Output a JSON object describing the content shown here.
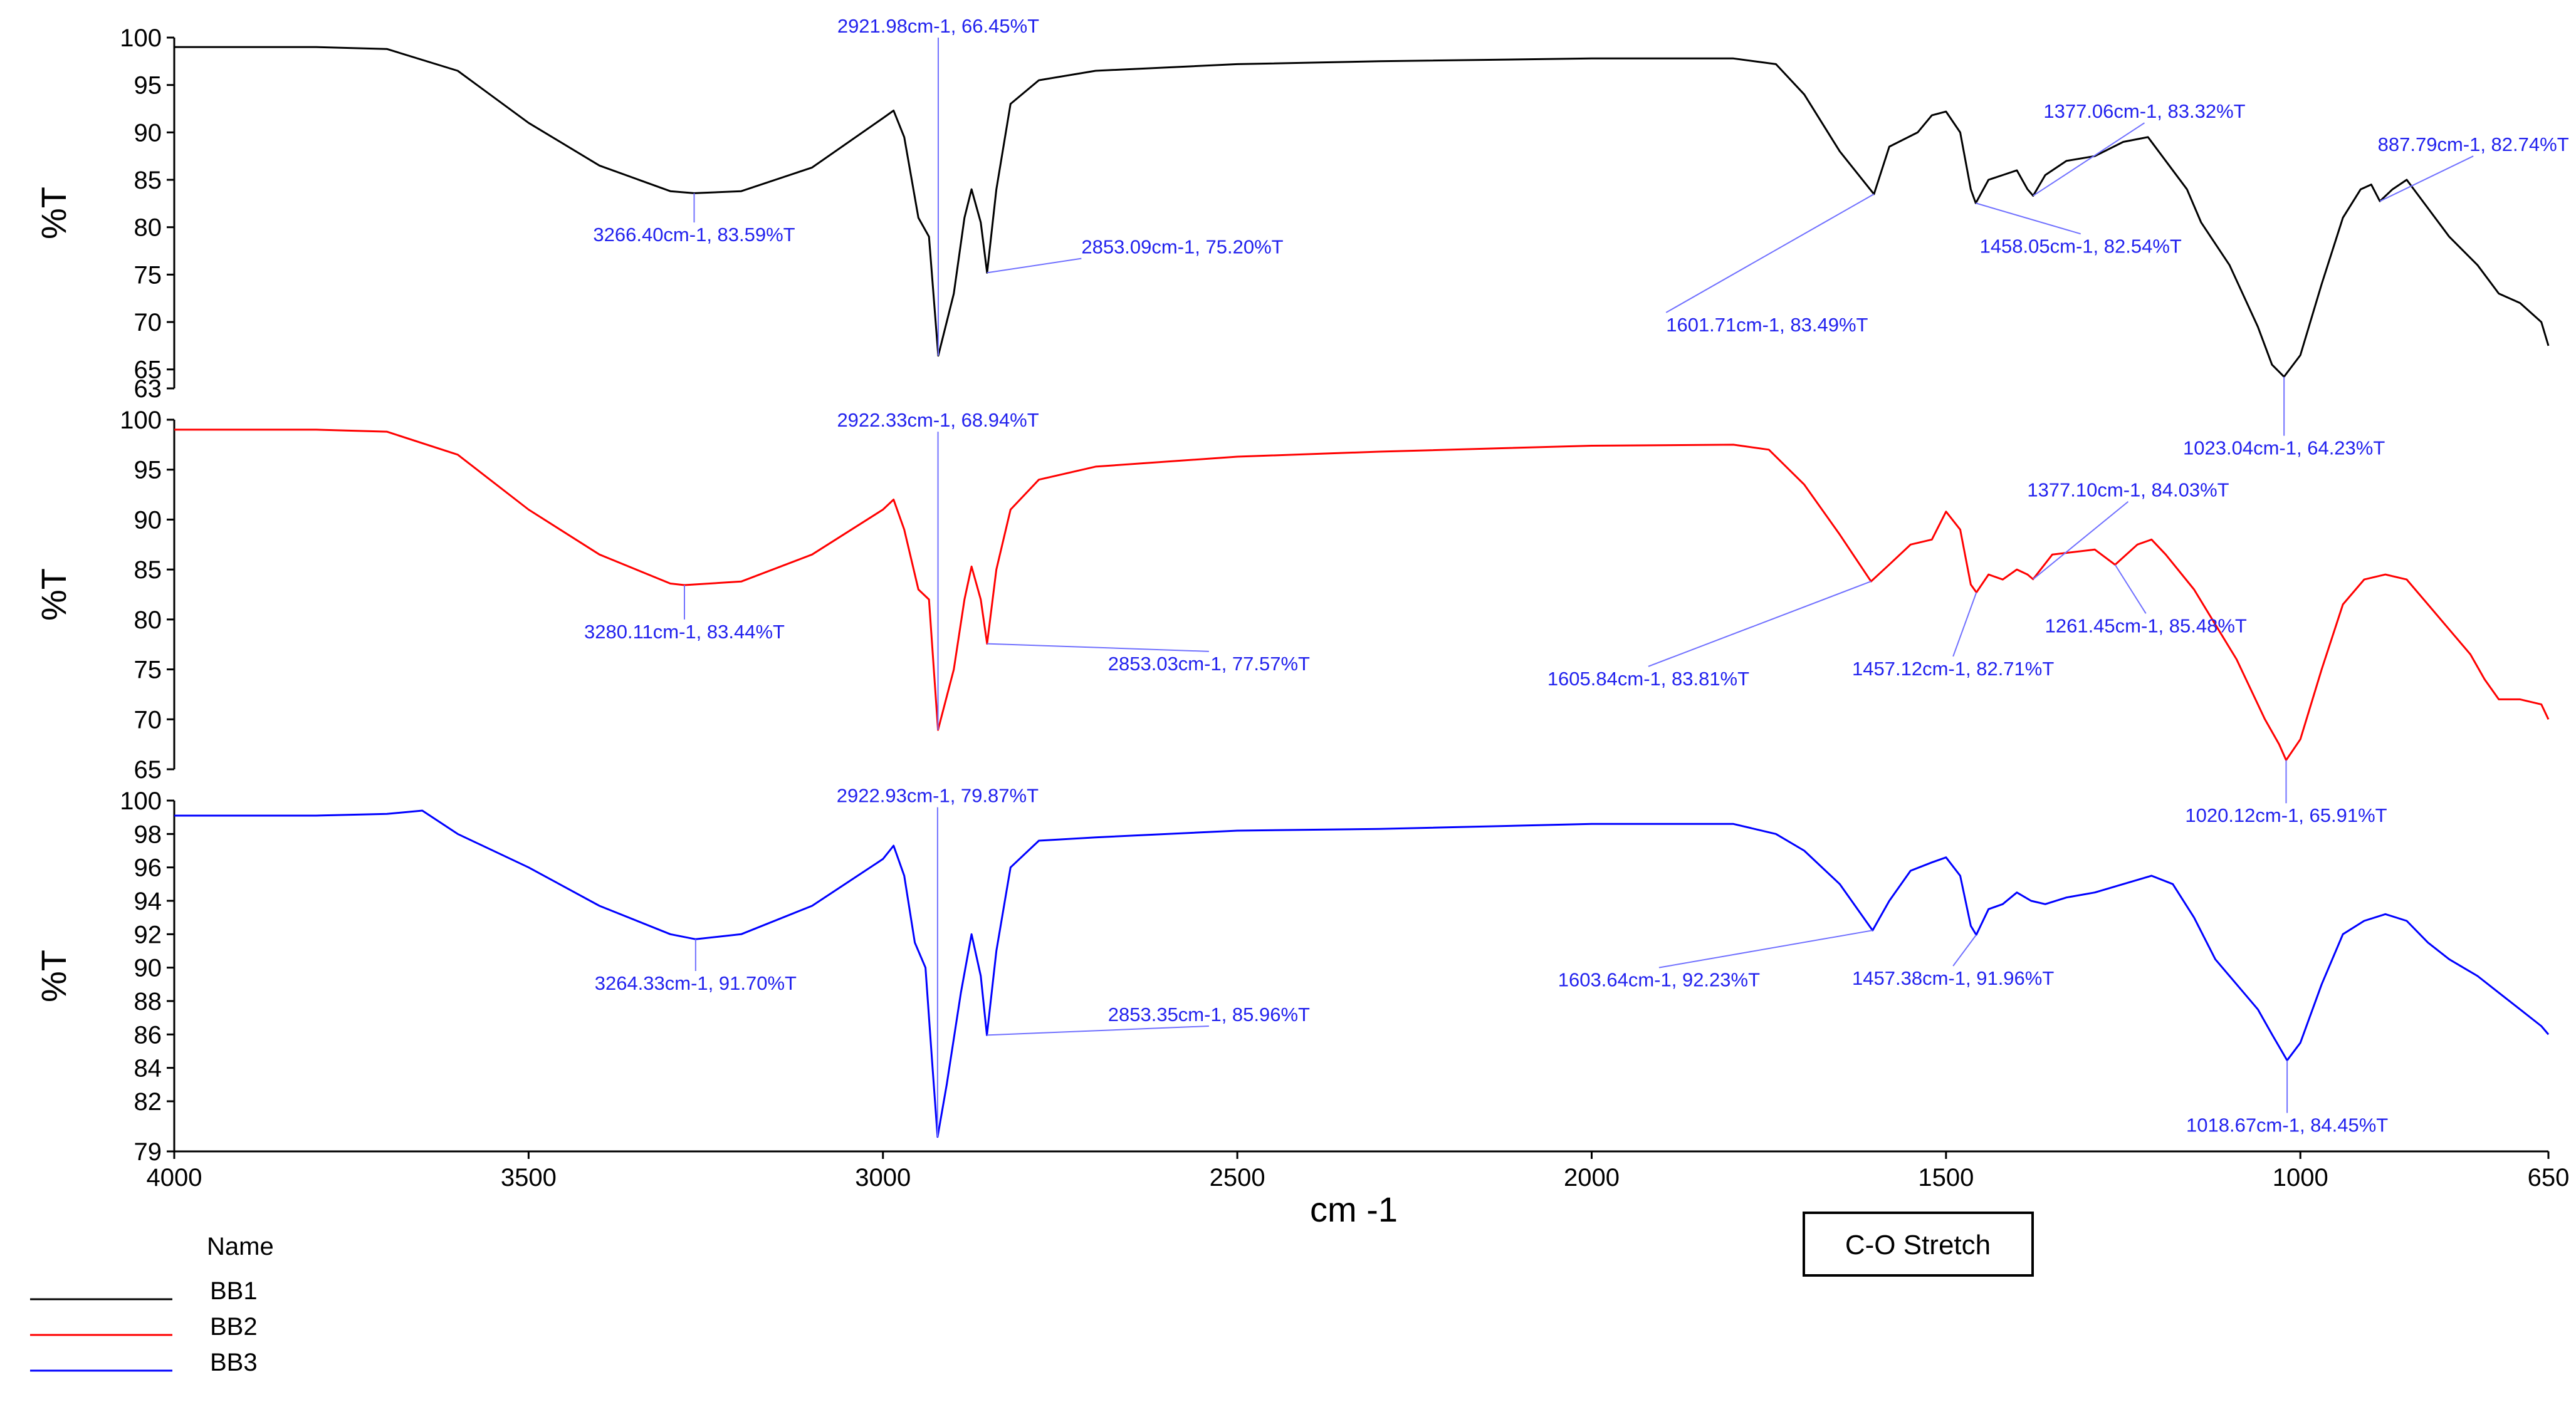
{
  "chart_data": {
    "type": "line",
    "x_axis": {
      "label": "cm -1",
      "range": [
        4000,
        650
      ],
      "reversed": true,
      "ticks": [
        4000,
        3500,
        3000,
        2500,
        2000,
        1500,
        1000,
        650
      ]
    },
    "legend": {
      "title": "Name",
      "placement": "bottom-left",
      "entries": [
        {
          "name": "BB1",
          "color": "#000000"
        },
        {
          "name": "BB2",
          "color": "#ff0000"
        },
        {
          "name": "BB3",
          "color": "#0000ff"
        }
      ]
    },
    "box_label": "C-O Stretch",
    "panels": [
      {
        "series": "BB1",
        "color": "#000000",
        "ylabel": "%T",
        "ylim": [
          63,
          100
        ],
        "yticks": [
          100,
          95,
          90,
          85,
          80,
          75,
          70,
          65,
          63
        ],
        "points": [
          [
            4000,
            99
          ],
          [
            3800,
            99
          ],
          [
            3700,
            98.8
          ],
          [
            3600,
            96.5
          ],
          [
            3500,
            91
          ],
          [
            3400,
            86.5
          ],
          [
            3300,
            83.8
          ],
          [
            3266.4,
            83.59
          ],
          [
            3200,
            83.8
          ],
          [
            3100,
            86.3
          ],
          [
            3000,
            91.5
          ],
          [
            2985,
            92.3
          ],
          [
            2970,
            89.5
          ],
          [
            2950,
            81
          ],
          [
            2935,
            79
          ],
          [
            2921.98,
            66.45
          ],
          [
            2900,
            73
          ],
          [
            2885,
            81
          ],
          [
            2875,
            84
          ],
          [
            2862,
            80.5
          ],
          [
            2853.09,
            75.2
          ],
          [
            2840,
            84
          ],
          [
            2820,
            93
          ],
          [
            2780,
            95.5
          ],
          [
            2700,
            96.5
          ],
          [
            2500,
            97.2
          ],
          [
            2300,
            97.5
          ],
          [
            2000,
            97.8
          ],
          [
            1800,
            97.8
          ],
          [
            1740,
            97.2
          ],
          [
            1700,
            94
          ],
          [
            1650,
            88
          ],
          [
            1601.71,
            83.49
          ],
          [
            1580,
            88.5
          ],
          [
            1540,
            90
          ],
          [
            1520,
            91.8
          ],
          [
            1500,
            92.2
          ],
          [
            1480,
            90
          ],
          [
            1465,
            84
          ],
          [
            1458.05,
            82.54
          ],
          [
            1440,
            85
          ],
          [
            1420,
            85.5
          ],
          [
            1400,
            86
          ],
          [
            1385,
            84
          ],
          [
            1377.06,
            83.32
          ],
          [
            1360,
            85.5
          ],
          [
            1330,
            87
          ],
          [
            1290,
            87.5
          ],
          [
            1250,
            89
          ],
          [
            1215,
            89.5
          ],
          [
            1190,
            87
          ],
          [
            1160,
            84
          ],
          [
            1140,
            80.5
          ],
          [
            1100,
            76
          ],
          [
            1060,
            69.5
          ],
          [
            1040,
            65.5
          ],
          [
            1023.04,
            64.23
          ],
          [
            1000,
            66.5
          ],
          [
            970,
            74
          ],
          [
            940,
            81
          ],
          [
            915,
            84
          ],
          [
            900,
            84.5
          ],
          [
            887.79,
            82.74
          ],
          [
            870,
            84
          ],
          [
            850,
            85
          ],
          [
            820,
            82
          ],
          [
            790,
            79
          ],
          [
            750,
            76
          ],
          [
            720,
            73
          ],
          [
            690,
            72
          ],
          [
            660,
            70
          ],
          [
            650,
            67.5
          ]
        ],
        "annotations": [
          {
            "x": 3266.4,
            "y": 83.59,
            "label": "3266.40cm-1, 83.59%T",
            "tx": 3266.4,
            "ty": 80.5,
            "anchor": "middle"
          },
          {
            "x": 2921.98,
            "y": 66.45,
            "label": "2921.98cm-1, 66.45%T",
            "tx": 2921.98,
            "ty": 100,
            "anchor": "middle"
          },
          {
            "x": 2853.09,
            "y": 75.2,
            "label": "2853.09cm-1, 75.20%T",
            "tx": 2720,
            "ty": 76.7,
            "anchor": "start"
          },
          {
            "x": 1601.71,
            "y": 83.49,
            "label": "1601.71cm-1, 83.49%T",
            "tx": 1895,
            "ty": 71,
            "anchor": "start"
          },
          {
            "x": 1458.05,
            "y": 82.54,
            "label": "1458.05cm-1, 82.54%T",
            "tx": 1310,
            "ty": 79.3,
            "anchor": "middle"
          },
          {
            "x": 1377.06,
            "y": 83.32,
            "label": "1377.06cm-1, 83.32%T",
            "tx": 1220,
            "ty": 91,
            "anchor": "middle"
          },
          {
            "x": 887.79,
            "y": 82.74,
            "label": "887.79cm-1, 82.74%T",
            "tx": 756,
            "ty": 87.5,
            "anchor": "middle"
          },
          {
            "x": 1023.04,
            "y": 64.23,
            "label": "1023.04cm-1, 64.23%T",
            "tx": 1023.04,
            "ty": 58,
            "anchor": "middle"
          }
        ]
      },
      {
        "series": "BB2",
        "color": "#ff0000",
        "ylabel": "%T",
        "ylim": [
          65,
          100
        ],
        "yticks": [
          100,
          95,
          90,
          85,
          80,
          75,
          70,
          65
        ],
        "points": [
          [
            4000,
            99
          ],
          [
            3800,
            99
          ],
          [
            3700,
            98.8
          ],
          [
            3600,
            96.5
          ],
          [
            3500,
            91
          ],
          [
            3400,
            86.5
          ],
          [
            3300,
            83.6
          ],
          [
            3280.11,
            83.44
          ],
          [
            3200,
            83.8
          ],
          [
            3100,
            86.5
          ],
          [
            3000,
            91
          ],
          [
            2985,
            92
          ],
          [
            2970,
            89
          ],
          [
            2950,
            83
          ],
          [
            2935,
            82
          ],
          [
            2922.33,
            68.94
          ],
          [
            2900,
            75
          ],
          [
            2885,
            82
          ],
          [
            2875,
            85.3
          ],
          [
            2862,
            82
          ],
          [
            2853.03,
            77.57
          ],
          [
            2840,
            85
          ],
          [
            2820,
            91
          ],
          [
            2780,
            94
          ],
          [
            2700,
            95.3
          ],
          [
            2500,
            96.3
          ],
          [
            2300,
            96.8
          ],
          [
            2000,
            97.4
          ],
          [
            1800,
            97.5
          ],
          [
            1750,
            97
          ],
          [
            1700,
            93.5
          ],
          [
            1650,
            88.5
          ],
          [
            1605.84,
            83.81
          ],
          [
            1580,
            85.5
          ],
          [
            1550,
            87.5
          ],
          [
            1520,
            88
          ],
          [
            1500,
            90.8
          ],
          [
            1480,
            89
          ],
          [
            1465,
            83.5
          ],
          [
            1457.12,
            82.71
          ],
          [
            1440,
            84.5
          ],
          [
            1420,
            84
          ],
          [
            1400,
            85
          ],
          [
            1385,
            84.5
          ],
          [
            1377.1,
            84.03
          ],
          [
            1350,
            86.5
          ],
          [
            1290,
            87
          ],
          [
            1261.45,
            85.48
          ],
          [
            1230,
            87.5
          ],
          [
            1210,
            88
          ],
          [
            1190,
            86.5
          ],
          [
            1150,
            83
          ],
          [
            1120,
            79.5
          ],
          [
            1090,
            76
          ],
          [
            1050,
            70
          ],
          [
            1030,
            67.5
          ],
          [
            1020.12,
            65.91
          ],
          [
            1000,
            68
          ],
          [
            970,
            75
          ],
          [
            940,
            81.5
          ],
          [
            910,
            84
          ],
          [
            880,
            84.5
          ],
          [
            850,
            84
          ],
          [
            820,
            81.5
          ],
          [
            790,
            79
          ],
          [
            760,
            76.5
          ],
          [
            740,
            74
          ],
          [
            720,
            72
          ],
          [
            690,
            72
          ],
          [
            660,
            71.5
          ],
          [
            650,
            70
          ]
        ],
        "annotations": [
          {
            "x": 3280.11,
            "y": 83.44,
            "label": "3280.11cm-1, 83.44%T",
            "tx": 3280.11,
            "ty": 80,
            "anchor": "middle"
          },
          {
            "x": 2922.33,
            "y": 68.94,
            "label": "2922.33cm-1, 68.94%T",
            "tx": 2922.33,
            "ty": 98.8,
            "anchor": "middle"
          },
          {
            "x": 2853.03,
            "y": 77.57,
            "label": "2853.03cm-1, 77.57%T",
            "tx": 2540,
            "ty": 76.8,
            "anchor": "middle"
          },
          {
            "x": 1605.84,
            "y": 83.81,
            "label": "1605.84cm-1, 83.81%T",
            "tx": 1920,
            "ty": 75.3,
            "anchor": "middle"
          },
          {
            "x": 1457.12,
            "y": 82.71,
            "label": "1457.12cm-1, 82.71%T",
            "tx": 1490,
            "ty": 76.3,
            "anchor": "middle"
          },
          {
            "x": 1377.1,
            "y": 84.03,
            "label": "1377.10cm-1, 84.03%T",
            "tx": 1243,
            "ty": 91.8,
            "anchor": "middle"
          },
          {
            "x": 1261.45,
            "y": 85.48,
            "label": "1261.45cm-1, 85.48%T",
            "tx": 1218,
            "ty": 80.6,
            "anchor": "middle"
          },
          {
            "x": 1020.12,
            "y": 65.91,
            "label": "1020.12cm-1, 65.91%T",
            "tx": 1020.12,
            "ty": 61.6,
            "anchor": "middle"
          }
        ]
      },
      {
        "series": "BB3",
        "color": "#0000ff",
        "ylabel": "%T",
        "ylim": [
          79,
          100
        ],
        "yticks": [
          100,
          98,
          96,
          94,
          92,
          90,
          88,
          86,
          84,
          82,
          79
        ],
        "points": [
          [
            4000,
            99.1
          ],
          [
            3800,
            99.1
          ],
          [
            3700,
            99.2
          ],
          [
            3650,
            99.4
          ],
          [
            3600,
            98
          ],
          [
            3500,
            96
          ],
          [
            3400,
            93.7
          ],
          [
            3300,
            92
          ],
          [
            3264.33,
            91.7
          ],
          [
            3200,
            92
          ],
          [
            3100,
            93.7
          ],
          [
            3000,
            96.5
          ],
          [
            2985,
            97.3
          ],
          [
            2970,
            95.5
          ],
          [
            2955,
            91.5
          ],
          [
            2940,
            90
          ],
          [
            2930,
            84
          ],
          [
            2922.93,
            79.87
          ],
          [
            2910,
            83
          ],
          [
            2890,
            88.5
          ],
          [
            2875,
            92
          ],
          [
            2862,
            89.5
          ],
          [
            2853.35,
            85.96
          ],
          [
            2840,
            91
          ],
          [
            2820,
            96
          ],
          [
            2780,
            97.6
          ],
          [
            2700,
            97.8
          ],
          [
            2500,
            98.2
          ],
          [
            2300,
            98.3
          ],
          [
            2000,
            98.6
          ],
          [
            1800,
            98.6
          ],
          [
            1740,
            98
          ],
          [
            1700,
            97
          ],
          [
            1650,
            95
          ],
          [
            1603.64,
            92.23
          ],
          [
            1580,
            94
          ],
          [
            1550,
            95.8
          ],
          [
            1520,
            96.3
          ],
          [
            1500,
            96.6
          ],
          [
            1480,
            95.5
          ],
          [
            1465,
            92.5
          ],
          [
            1457.38,
            91.96
          ],
          [
            1440,
            93.5
          ],
          [
            1420,
            93.8
          ],
          [
            1400,
            94.5
          ],
          [
            1380,
            94
          ],
          [
            1360,
            93.8
          ],
          [
            1330,
            94.2
          ],
          [
            1290,
            94.5
          ],
          [
            1250,
            95
          ],
          [
            1210,
            95.5
          ],
          [
            1180,
            95
          ],
          [
            1150,
            93
          ],
          [
            1120,
            90.5
          ],
          [
            1090,
            89
          ],
          [
            1060,
            87.5
          ],
          [
            1040,
            86
          ],
          [
            1018.67,
            84.45
          ],
          [
            1000,
            85.5
          ],
          [
            970,
            89
          ],
          [
            940,
            92
          ],
          [
            910,
            92.8
          ],
          [
            880,
            93.2
          ],
          [
            850,
            92.8
          ],
          [
            820,
            91.5
          ],
          [
            790,
            90.5
          ],
          [
            750,
            89.5
          ],
          [
            720,
            88.5
          ],
          [
            690,
            87.5
          ],
          [
            660,
            86.5
          ],
          [
            650,
            86
          ]
        ],
        "annotations": [
          {
            "x": 3264.33,
            "y": 91.7,
            "label": "3264.33cm-1, 91.70%T",
            "tx": 3264.33,
            "ty": 89.8,
            "anchor": "middle"
          },
          {
            "x": 2922.93,
            "y": 79.87,
            "label": "2922.93cm-1, 79.87%T",
            "tx": 2922.93,
            "ty": 99.6,
            "anchor": "middle"
          },
          {
            "x": 2853.35,
            "y": 85.96,
            "label": "2853.35cm-1, 85.96%T",
            "tx": 2540,
            "ty": 86.5,
            "anchor": "middle"
          },
          {
            "x": 1603.64,
            "y": 92.23,
            "label": "1603.64cm-1, 92.23%T",
            "tx": 1905,
            "ty": 90,
            "anchor": "middle"
          },
          {
            "x": 1457.38,
            "y": 91.96,
            "label": "1457.38cm-1, 91.96%T",
            "tx": 1490,
            "ty": 90.1,
            "anchor": "middle"
          },
          {
            "x": 1018.67,
            "y": 84.45,
            "label": "1018.67cm-1, 84.45%T",
            "tx": 1018.67,
            "ty": 81.3,
            "anchor": "middle"
          }
        ]
      }
    ]
  }
}
